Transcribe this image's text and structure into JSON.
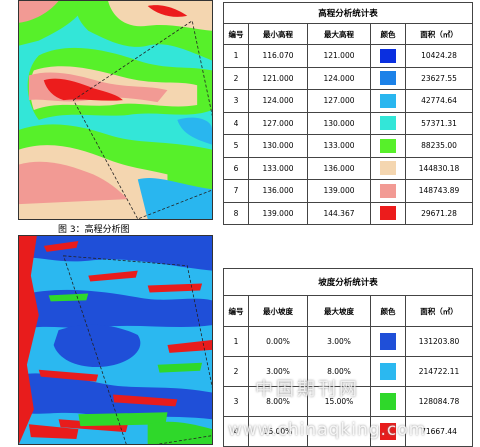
{
  "caption": "图 3：高程分析图",
  "elevation_table": {
    "title": "高程分析统计表",
    "headers": [
      "编号",
      "最小高程",
      "最大高程",
      "颜色",
      "面积（㎡）"
    ],
    "rows": [
      {
        "id": "1",
        "min": "116.070",
        "max": "121.000",
        "color": "#0a2fe0",
        "area": "10424.28"
      },
      {
        "id": "2",
        "min": "121.000",
        "max": "124.000",
        "color": "#1c82e8",
        "area": "23627.55"
      },
      {
        "id": "3",
        "min": "124.000",
        "max": "127.000",
        "color": "#29b6ef",
        "area": "42774.64"
      },
      {
        "id": "4",
        "min": "127.000",
        "max": "130.000",
        "color": "#33e6d8",
        "area": "57371.31"
      },
      {
        "id": "5",
        "min": "130.000",
        "max": "133.000",
        "color": "#57f02a",
        "area": "88235.00"
      },
      {
        "id": "6",
        "min": "133.000",
        "max": "136.000",
        "color": "#f4d6b0",
        "area": "144830.18"
      },
      {
        "id": "7",
        "min": "136.000",
        "max": "139.000",
        "color": "#f29a94",
        "area": "148743.89"
      },
      {
        "id": "8",
        "min": "139.000",
        "max": "144.367",
        "color": "#ec1c1c",
        "area": "29671.28"
      }
    ]
  },
  "slope_table": {
    "title": "坡度分析统计表",
    "headers": [
      "编号",
      "最小坡度",
      "最大坡度",
      "颜色",
      "面积（㎡）"
    ],
    "rows": [
      {
        "id": "1",
        "min": "0.00%",
        "max": "3.00%",
        "color": "#1f4fd8",
        "area": "131203.80"
      },
      {
        "id": "2",
        "min": "3.00%",
        "max": "8.00%",
        "color": "#2bb8f0",
        "area": "214722.11"
      },
      {
        "id": "3",
        "min": "8.00%",
        "max": "15.00%",
        "color": "#2fd82a",
        "area": "128084.78"
      },
      {
        "id": "4",
        "min": "15.00%",
        "max": "",
        "color": "#e81c1c",
        "area": "71667.44"
      }
    ]
  },
  "watermark": {
    "cn": "中国期刊网",
    "url": "www.chinaqking.com"
  }
}
